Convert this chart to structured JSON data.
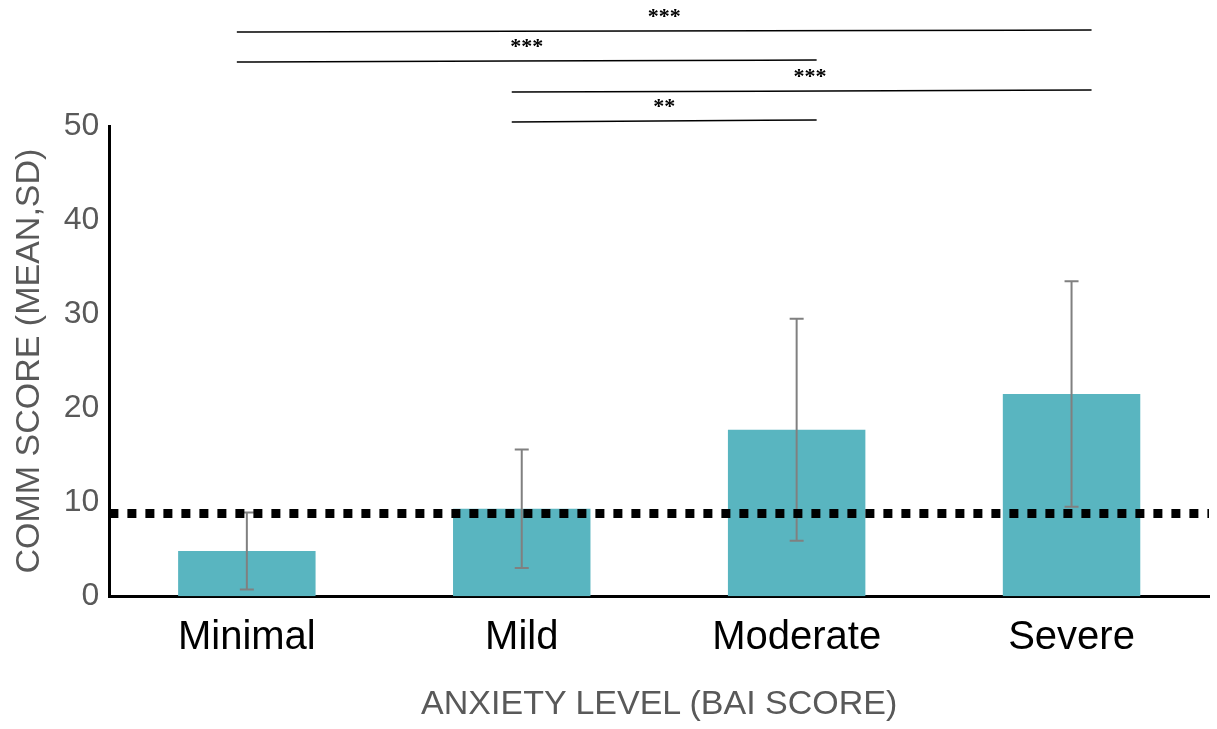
{
  "chart_data": {
    "type": "bar",
    "categories": [
      "Minimal",
      "Mild",
      "Moderate",
      "Severe"
    ],
    "values": [
      4.8,
      9.3,
      17.7,
      21.5
    ],
    "color": "#59b5c0",
    "errors": [
      4.1,
      6.3,
      11.8,
      12.0
    ],
    "ylim": [
      0,
      50
    ],
    "yticks": [
      0,
      10,
      20,
      30,
      40,
      50
    ],
    "grid": false,
    "legend": false,
    "xlabel": "ANXIETY LEVEL (BAI SCORE)",
    "ylabel": "COMM SCORE (MEAN,SD)",
    "ref_lines": [
      {
        "axis": "y",
        "value": 8.8,
        "color": "#000000",
        "line_style": "dotted"
      }
    ],
    "annotations": [
      "***",
      "***",
      "***",
      "**"
    ]
  }
}
